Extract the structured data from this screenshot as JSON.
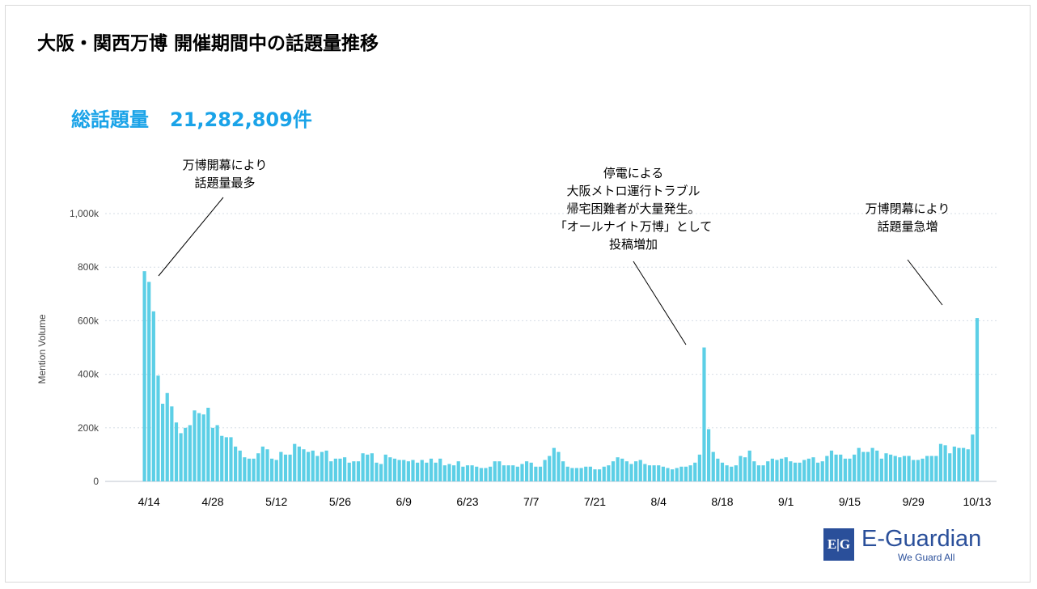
{
  "title": "大阪・関西万博 開催期間中の話題量推移",
  "total": {
    "label": "総話題量",
    "value": "21,282,809件"
  },
  "annotations": [
    {
      "lines": [
        "万博開幕により",
        "話題量最多"
      ]
    },
    {
      "lines": [
        "停電による",
        "大阪メトロ運行トラブル",
        "帰宅困難者が大量発生。",
        "「オールナイト万博」として",
        "投稿増加"
      ]
    },
    {
      "lines": [
        "万博閉幕により",
        "話題量急増"
      ]
    }
  ],
  "logo": {
    "mark": "E|G",
    "name": "E-Guardian",
    "tagline": "We Guard All"
  },
  "colors": {
    "bar": "#5ccfe6",
    "title": "#000000",
    "accent": "#1aa3e8",
    "grid": "#d6dde6",
    "axis_text": "#444444",
    "logo": "#2a4f9a"
  },
  "chart_data": {
    "type": "bar",
    "ylabel": "Mention Volume",
    "ylim": [
      0,
      1000000
    ],
    "yticks": [
      0,
      200000,
      400000,
      600000,
      800000,
      1000000
    ],
    "ytick_labels": [
      "0",
      "200k",
      "400k",
      "600k",
      "800k",
      "1,000k"
    ],
    "x_start": "4/13",
    "x_end": "10/13",
    "xtick_labels": [
      "4/14",
      "4/28",
      "5/12",
      "5/26",
      "6/9",
      "6/23",
      "7/7",
      "7/21",
      "8/4",
      "8/18",
      "9/1",
      "9/15",
      "9/29",
      "10/13"
    ],
    "xtick_day_index": [
      1,
      15,
      29,
      43,
      57,
      71,
      85,
      99,
      113,
      127,
      141,
      155,
      169,
      183
    ],
    "values": [
      785000,
      745000,
      635000,
      395000,
      290000,
      330000,
      280000,
      220000,
      180000,
      200000,
      210000,
      265000,
      255000,
      250000,
      275000,
      200000,
      210000,
      170000,
      165000,
      165000,
      130000,
      115000,
      90000,
      85000,
      85000,
      105000,
      130000,
      120000,
      85000,
      80000,
      110000,
      100000,
      100000,
      140000,
      130000,
      120000,
      110000,
      115000,
      95000,
      110000,
      115000,
      75000,
      85000,
      85000,
      90000,
      70000,
      75000,
      75000,
      105000,
      100000,
      105000,
      70000,
      65000,
      100000,
      90000,
      85000,
      80000,
      80000,
      75000,
      80000,
      70000,
      80000,
      70000,
      85000,
      70000,
      85000,
      60000,
      65000,
      60000,
      75000,
      55000,
      60000,
      60000,
      55000,
      50000,
      50000,
      55000,
      75000,
      75000,
      60000,
      60000,
      60000,
      55000,
      65000,
      75000,
      70000,
      55000,
      55000,
      80000,
      95000,
      125000,
      110000,
      75000,
      55000,
      50000,
      50000,
      50000,
      55000,
      55000,
      45000,
      45000,
      55000,
      60000,
      75000,
      90000,
      85000,
      75000,
      65000,
      75000,
      80000,
      65000,
      60000,
      60000,
      60000,
      55000,
      50000,
      45000,
      50000,
      55000,
      55000,
      60000,
      70000,
      100000,
      500000,
      195000,
      110000,
      85000,
      70000,
      60000,
      55000,
      60000,
      95000,
      90000,
      115000,
      75000,
      60000,
      60000,
      75000,
      85000,
      80000,
      85000,
      90000,
      75000,
      70000,
      70000,
      80000,
      85000,
      90000,
      70000,
      75000,
      95000,
      115000,
      100000,
      100000,
      85000,
      85000,
      100000,
      125000,
      110000,
      110000,
      125000,
      115000,
      85000,
      105000,
      100000,
      95000,
      90000,
      95000,
      95000,
      80000,
      80000,
      85000,
      95000,
      95000,
      95000,
      140000,
      135000,
      105000,
      130000,
      125000,
      125000,
      120000,
      175000,
      610000
    ]
  }
}
